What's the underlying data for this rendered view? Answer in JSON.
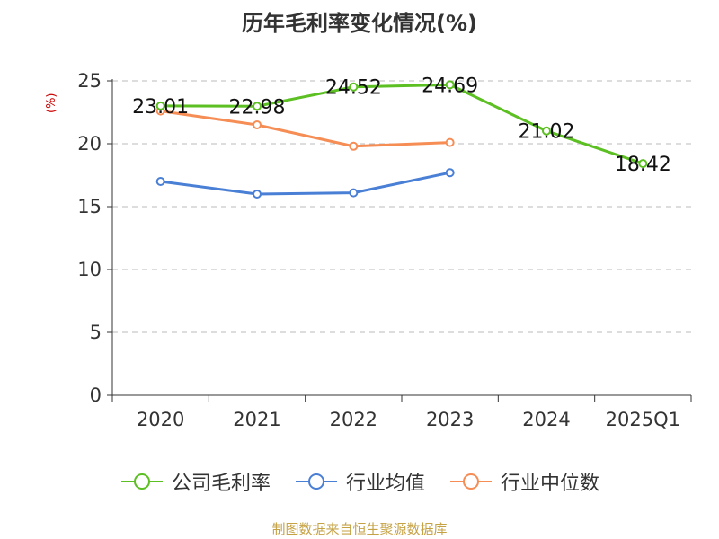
{
  "title": "历年毛利率变化情况(%)",
  "footer": "制图数据来自恒生聚源数据库",
  "chart_data": {
    "type": "line",
    "title": "历年毛利率变化情况(%)",
    "ylabel": "(%)",
    "xlabel": "",
    "categories": [
      "2020",
      "2021",
      "2022",
      "2023",
      "2024",
      "2025Q1"
    ],
    "ylim": [
      0,
      25
    ],
    "yticks": [
      0,
      5,
      10,
      15,
      20,
      25
    ],
    "grid": "horizontal dashed",
    "legend_position": "bottom",
    "series": [
      {
        "name": "公司毛利率",
        "color": "#5cbf22",
        "values": [
          23.01,
          22.98,
          24.52,
          24.69,
          21.02,
          18.42
        ],
        "data_labels": [
          "23.01",
          "22.98",
          "24.52",
          "24.69",
          "21.02",
          "18.42"
        ]
      },
      {
        "name": "行业均值",
        "color": "#4a7fd6",
        "values": [
          17.0,
          16.0,
          16.1,
          17.7,
          null,
          null
        ]
      },
      {
        "name": "行业中位数",
        "color": "#f58d55",
        "values": [
          22.6,
          21.5,
          19.8,
          20.1,
          null,
          null
        ]
      }
    ]
  }
}
